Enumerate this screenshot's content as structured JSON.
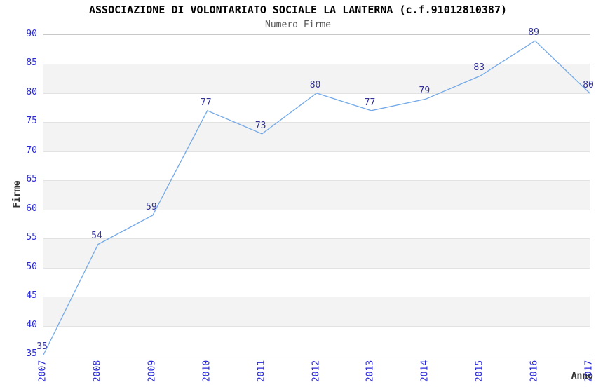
{
  "chart_data": {
    "type": "line",
    "title": "ASSOCIAZIONE DI VOLONTARIATO SOCIALE LA LANTERNA (c.f.91012810387)",
    "subtitle": "Numero Firme",
    "xlabel": "Anno",
    "ylabel": "Firme",
    "categories": [
      "2007",
      "2008",
      "2009",
      "2010",
      "2011",
      "2012",
      "2013",
      "2014",
      "2015",
      "2016",
      "2017"
    ],
    "values": [
      35,
      54,
      59,
      77,
      73,
      80,
      77,
      79,
      83,
      89,
      80
    ],
    "ylim": [
      35,
      90
    ],
    "ytick_step": 5,
    "grid": true,
    "alternating_bands": true,
    "legend_position": "none",
    "data_labels_shown": true,
    "colors": {
      "line": "#73a9e8",
      "tick_label": "#2828d8",
      "data_label": "#32329b",
      "title": "#000000",
      "subtitle": "#555555",
      "axis_label": "#333333",
      "band": "#f3f3f3",
      "gridline": "#e2e2e2",
      "plot_border": "#c9c9c9",
      "background": "#ffffff"
    }
  }
}
